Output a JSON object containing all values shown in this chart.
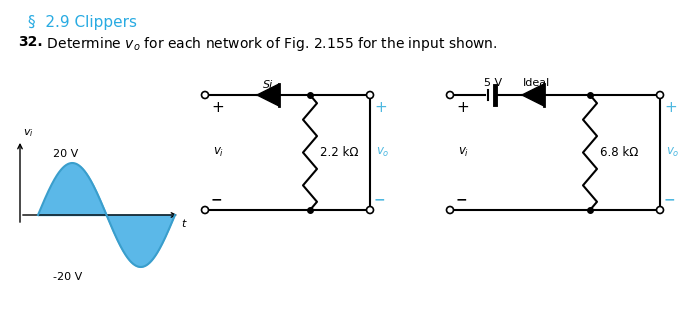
{
  "title_section": "§  2.9 Clippers",
  "title_color": "#29ABE2",
  "problem_bold": "32.",
  "problem_body": "  Determine $v_o$ for each network of Fig. 2.155 for the input shown.",
  "bg_color": "#ffffff",
  "text_color": "#000000",
  "signal_fill_color": "#5BB8E8",
  "cyan_color": "#4EB8E0",
  "circuit1_resistor": "2.2 kΩ",
  "circuit2_resistor": "6.8 kΩ",
  "circuit2_voltage": "5 V",
  "circuit2_ideal": "Ideal"
}
